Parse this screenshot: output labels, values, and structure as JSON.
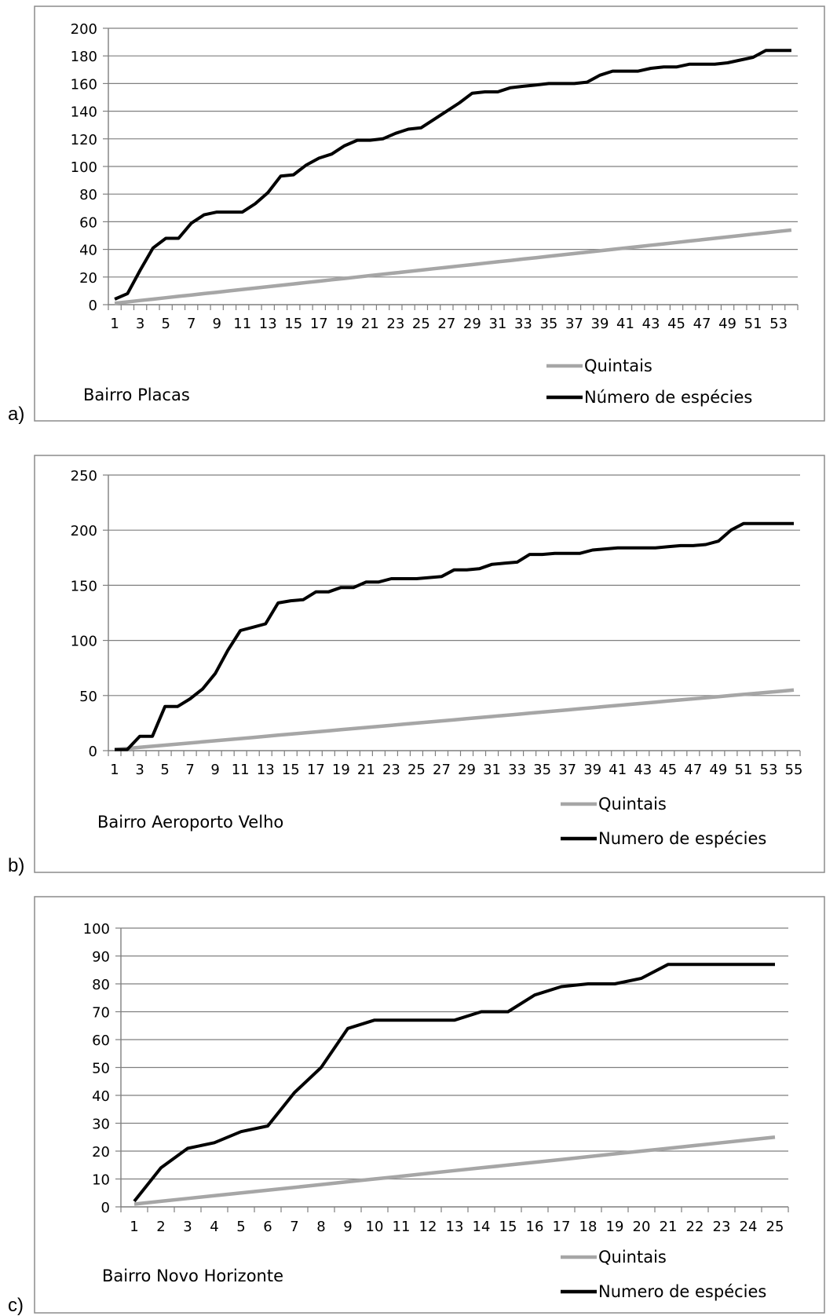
{
  "chart_data": [
    {
      "type": "line",
      "panel_label": "a)",
      "annotation": "Bairro Placas",
      "ylim": [
        0,
        200
      ],
      "yticks": [
        0,
        20,
        40,
        60,
        80,
        100,
        120,
        140,
        160,
        180,
        200
      ],
      "x_count": 54,
      "xtick_labels": [
        "1",
        "3",
        "5",
        "7",
        "9",
        "11",
        "13",
        "15",
        "17",
        "19",
        "21",
        "23",
        "25",
        "27",
        "29",
        "31",
        "33",
        "35",
        "37",
        "39",
        "41",
        "43",
        "45",
        "47",
        "49",
        "51",
        "53"
      ],
      "grid": true,
      "legend_position": "bottom-right",
      "series": [
        {
          "name": "Quintais",
          "color": "#a6a6a6",
          "values": [
            1,
            2,
            3,
            4,
            5,
            6,
            7,
            8,
            9,
            10,
            11,
            12,
            13,
            14,
            15,
            16,
            17,
            18,
            19,
            20,
            21,
            22,
            23,
            24,
            25,
            26,
            27,
            28,
            29,
            30,
            31,
            32,
            33,
            34,
            35,
            36,
            37,
            38,
            39,
            40,
            41,
            42,
            43,
            44,
            45,
            46,
            47,
            48,
            49,
            50,
            51,
            52,
            53,
            54
          ]
        },
        {
          "name": "Número de espécies",
          "color": "#000000",
          "values": [
            4,
            8,
            25,
            41,
            48,
            48,
            59,
            65,
            67,
            67,
            67,
            73,
            81,
            93,
            94,
            101,
            106,
            109,
            115,
            119,
            119,
            120,
            124,
            127,
            128,
            134,
            140,
            146,
            153,
            154,
            154,
            157,
            158,
            159,
            160,
            160,
            160,
            161,
            166,
            169,
            169,
            169,
            171,
            172,
            172,
            174,
            174,
            174,
            175,
            177,
            179,
            184,
            184,
            184
          ]
        }
      ]
    },
    {
      "type": "line",
      "panel_label": "b)",
      "annotation": "Bairro Aeroporto Velho",
      "ylim": [
        0,
        250
      ],
      "yticks": [
        0,
        50,
        100,
        150,
        200,
        250
      ],
      "x_count": 55,
      "xtick_labels": [
        "1",
        "3",
        "5",
        "7",
        "9",
        "11",
        "13",
        "15",
        "17",
        "19",
        "21",
        "23",
        "25",
        "27",
        "29",
        "31",
        "33",
        "35",
        "37",
        "39",
        "41",
        "43",
        "45",
        "47",
        "49",
        "51",
        "53",
        "55"
      ],
      "grid": true,
      "legend_position": "bottom-right",
      "series": [
        {
          "name": "Quintais",
          "color": "#a6a6a6",
          "values": [
            1,
            2,
            3,
            4,
            5,
            6,
            7,
            8,
            9,
            10,
            11,
            12,
            13,
            14,
            15,
            16,
            17,
            18,
            19,
            20,
            21,
            22,
            23,
            24,
            25,
            26,
            27,
            28,
            29,
            30,
            31,
            32,
            33,
            34,
            35,
            36,
            37,
            38,
            39,
            40,
            41,
            42,
            43,
            44,
            45,
            46,
            47,
            48,
            49,
            50,
            51,
            52,
            53,
            54,
            55
          ]
        },
        {
          "name": "Numero de espécies",
          "color": "#000000",
          "values": [
            1,
            1,
            13,
            13,
            40,
            40,
            47,
            56,
            70,
            91,
            109,
            112,
            115,
            134,
            136,
            137,
            144,
            144,
            148,
            148,
            153,
            153,
            156,
            156,
            156,
            157,
            158,
            164,
            164,
            165,
            169,
            170,
            171,
            178,
            178,
            179,
            179,
            179,
            182,
            183,
            184,
            184,
            184,
            184,
            185,
            186,
            186,
            187,
            190,
            200,
            206,
            206,
            206,
            206,
            206
          ]
        }
      ]
    },
    {
      "type": "line",
      "panel_label": "c)",
      "annotation": "Bairro Novo Horizonte",
      "ylim": [
        0,
        100
      ],
      "yticks": [
        0,
        10,
        20,
        30,
        40,
        50,
        60,
        70,
        80,
        90,
        100
      ],
      "x_count": 25,
      "xtick_labels": [
        "1",
        "2",
        "3",
        "4",
        "5",
        "6",
        "7",
        "8",
        "9",
        "10",
        "11",
        "12",
        "13",
        "14",
        "15",
        "16",
        "17",
        "18",
        "19",
        "20",
        "21",
        "22",
        "23",
        "24",
        "25"
      ],
      "grid": true,
      "legend_position": "bottom-right",
      "series": [
        {
          "name": "Quintais",
          "color": "#a6a6a6",
          "values": [
            1,
            2,
            3,
            4,
            5,
            6,
            7,
            8,
            9,
            10,
            11,
            12,
            13,
            14,
            15,
            16,
            17,
            18,
            19,
            20,
            21,
            22,
            23,
            24,
            25
          ]
        },
        {
          "name": "Numero de espécies",
          "color": "#000000",
          "values": [
            2,
            14,
            21,
            23,
            27,
            29,
            41,
            50,
            64,
            67,
            67,
            67,
            67,
            70,
            70,
            76,
            79,
            80,
            80,
            82,
            87,
            87,
            87,
            87,
            87
          ]
        }
      ]
    }
  ]
}
